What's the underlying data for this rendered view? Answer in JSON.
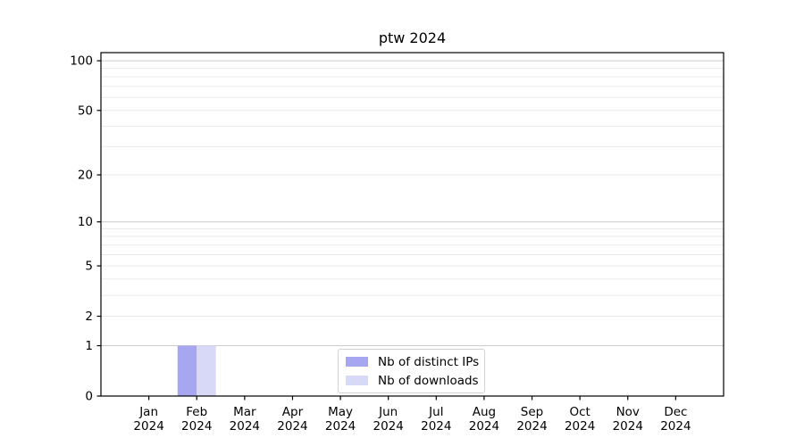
{
  "chart_data": {
    "type": "bar",
    "title": "ptw 2024",
    "yscale": "log1p",
    "ylim": [
      0,
      112
    ],
    "grid": true,
    "legend_position": "lower center",
    "y_ticks": [
      0,
      1,
      2,
      5,
      10,
      20,
      50,
      100
    ],
    "y_minor_gridlines": [
      3,
      4,
      6,
      7,
      8,
      9,
      30,
      40,
      60,
      70,
      80,
      90
    ],
    "x_labels": [
      {
        "month": "Jan",
        "year": "2024"
      },
      {
        "month": "Feb",
        "year": "2024"
      },
      {
        "month": "Mar",
        "year": "2024"
      },
      {
        "month": "Apr",
        "year": "2024"
      },
      {
        "month": "May",
        "year": "2024"
      },
      {
        "month": "Jun",
        "year": "2024"
      },
      {
        "month": "Jul",
        "year": "2024"
      },
      {
        "month": "Aug",
        "year": "2024"
      },
      {
        "month": "Sep",
        "year": "2024"
      },
      {
        "month": "Oct",
        "year": "2024"
      },
      {
        "month": "Nov",
        "year": "2024"
      },
      {
        "month": "Dec",
        "year": "2024"
      }
    ],
    "series": [
      {
        "name": "Nb of distinct IPs",
        "color": "#a6a6f1",
        "values": [
          0,
          1,
          0,
          0,
          0,
          0,
          0,
          0,
          0,
          0,
          0,
          0
        ]
      },
      {
        "name": "Nb of downloads",
        "color": "#d8d8f7",
        "values": [
          0,
          1,
          0,
          0,
          0,
          0,
          0,
          0,
          0,
          0,
          0,
          0
        ]
      }
    ],
    "colors": {
      "major_grid": "#cccccc",
      "minor_grid": "#ebebeb",
      "axis": "#000000",
      "background": "#ffffff"
    }
  }
}
